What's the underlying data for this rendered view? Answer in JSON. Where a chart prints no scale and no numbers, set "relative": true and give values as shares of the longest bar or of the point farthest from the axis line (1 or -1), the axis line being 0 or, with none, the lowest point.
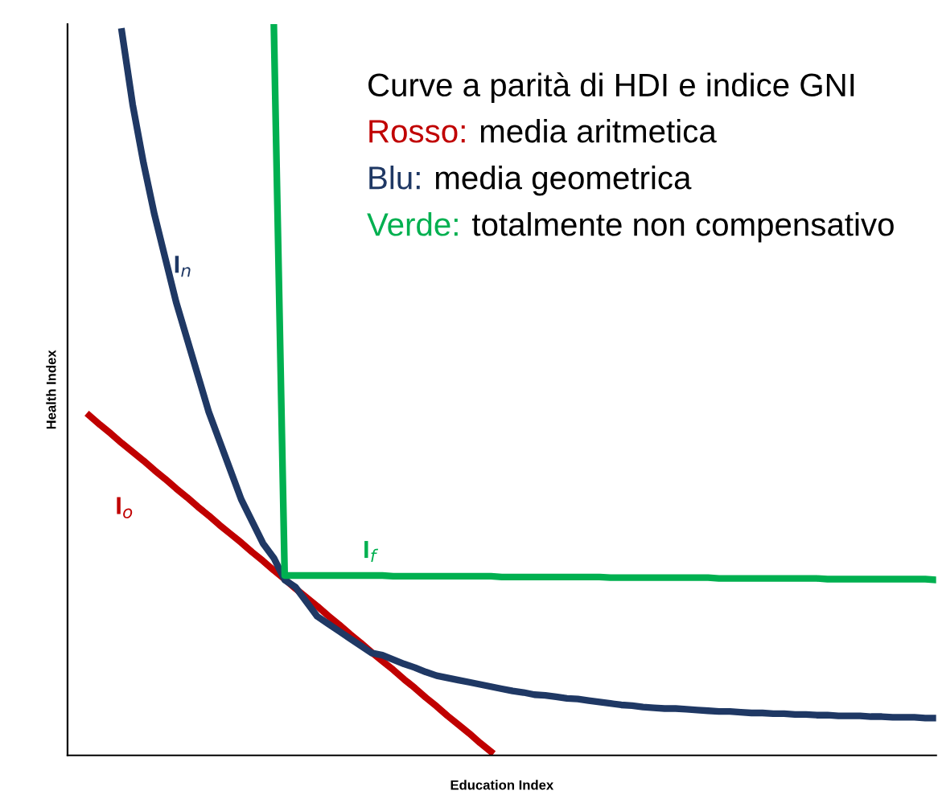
{
  "chart_data": {
    "type": "line",
    "relative": true,
    "xlabel": "Education Index",
    "ylabel": "Health Index",
    "grid": false,
    "legend": false,
    "marker": "none",
    "line_style": "solid",
    "annotations": [
      "Curve a parità di HDI e indice GNI",
      "Rosso:",
      "media aritmetica",
      "Blu:",
      "media geometrica",
      "Verde:",
      "totalmente non compensativo"
    ],
    "categories": [
      null,
      null,
      null,
      null,
      null,
      null,
      null,
      null,
      null,
      null,
      null,
      null,
      null,
      null,
      null,
      null,
      null,
      null,
      null,
      null,
      null,
      null,
      null,
      null,
      null,
      null,
      null,
      null,
      null,
      null,
      null,
      null,
      null,
      null,
      null,
      null,
      null,
      null,
      null,
      null,
      null,
      null,
      null,
      null,
      null,
      null,
      null,
      null,
      null,
      null,
      null,
      null,
      null,
      null,
      null,
      null,
      null,
      null,
      null,
      null,
      null,
      null,
      null,
      null,
      null,
      null,
      null,
      null,
      null,
      null,
      null,
      null,
      null,
      null,
      null,
      null,
      null,
      null,
      null,
      null,
      null
    ],
    "series": [
      {
        "name": "I$_{o}$",
        "color": "#c00000",
        "values": [
          null,
          null,
          0.465,
          0.452,
          0.44,
          0.427,
          0.415,
          0.403,
          0.39,
          0.378,
          0.365,
          0.353,
          0.34,
          0.328,
          0.315,
          0.303,
          0.291,
          0.278,
          0.266,
          0.253,
          0.241,
          0.228,
          0.216,
          0.204,
          0.191,
          0.179,
          0.166,
          0.154,
          0.141,
          0.129,
          0.117,
          0.104,
          0.092,
          0.079,
          0.067,
          0.054,
          0.042,
          0.03,
          0.017,
          0.005,
          null,
          null,
          null,
          null,
          null,
          null,
          null,
          null,
          null,
          null,
          null,
          null,
          null,
          null,
          null,
          null,
          null,
          null,
          null,
          null,
          null,
          null,
          null,
          null,
          null,
          null,
          null,
          null,
          null,
          null,
          null,
          null,
          null,
          null,
          null,
          null,
          null,
          null,
          null,
          null,
          null
        ]
      },
      {
        "name": "I$_{n}$",
        "color": "#1f3864",
        "values": [
          null,
          null,
          null,
          null,
          null,
          0.99,
          0.89,
          0.81,
          0.74,
          0.68,
          0.62,
          0.57,
          0.52,
          0.47,
          0.43,
          0.39,
          0.35,
          0.32,
          0.29,
          0.27,
          0.24,
          0.23,
          0.21,
          0.19,
          0.18,
          0.17,
          0.16,
          0.15,
          0.14,
          0.137,
          0.131,
          0.125,
          0.12,
          0.114,
          0.109,
          0.106,
          0.103,
          0.1,
          0.097,
          0.094,
          0.091,
          0.088,
          0.086,
          0.083,
          0.082,
          0.08,
          0.078,
          0.077,
          0.075,
          0.073,
          0.071,
          0.069,
          0.068,
          0.066,
          0.065,
          0.064,
          0.064,
          0.063,
          0.062,
          0.061,
          0.06,
          0.06,
          0.059,
          0.058,
          0.058,
          0.057,
          0.057,
          0.056,
          0.056,
          0.055,
          0.055,
          0.054,
          0.054,
          0.054,
          0.053,
          0.053,
          0.052,
          0.052,
          0.052,
          0.051,
          0.051
        ]
      },
      {
        "name": "I$_{f}$",
        "color": "#00b050",
        "values": [
          null,
          null,
          null,
          null,
          null,
          null,
          null,
          null,
          null,
          null,
          null,
          null,
          null,
          null,
          null,
          null,
          null,
          null,
          null,
          1.0,
          0.246,
          0.246,
          0.246,
          0.246,
          0.246,
          0.246,
          0.246,
          0.246,
          0.246,
          0.246,
          0.245,
          0.245,
          0.245,
          0.245,
          0.245,
          0.245,
          0.245,
          0.245,
          0.245,
          0.245,
          0.244,
          0.244,
          0.244,
          0.244,
          0.244,
          0.244,
          0.244,
          0.244,
          0.244,
          0.244,
          0.243,
          0.243,
          0.243,
          0.243,
          0.243,
          0.243,
          0.243,
          0.243,
          0.243,
          0.243,
          0.242,
          0.242,
          0.242,
          0.242,
          0.242,
          0.242,
          0.242,
          0.242,
          0.242,
          0.242,
          0.241,
          0.241,
          0.241,
          0.241,
          0.241,
          0.241,
          0.241,
          0.241,
          0.241,
          0.241,
          0.24
        ]
      }
    ]
  }
}
